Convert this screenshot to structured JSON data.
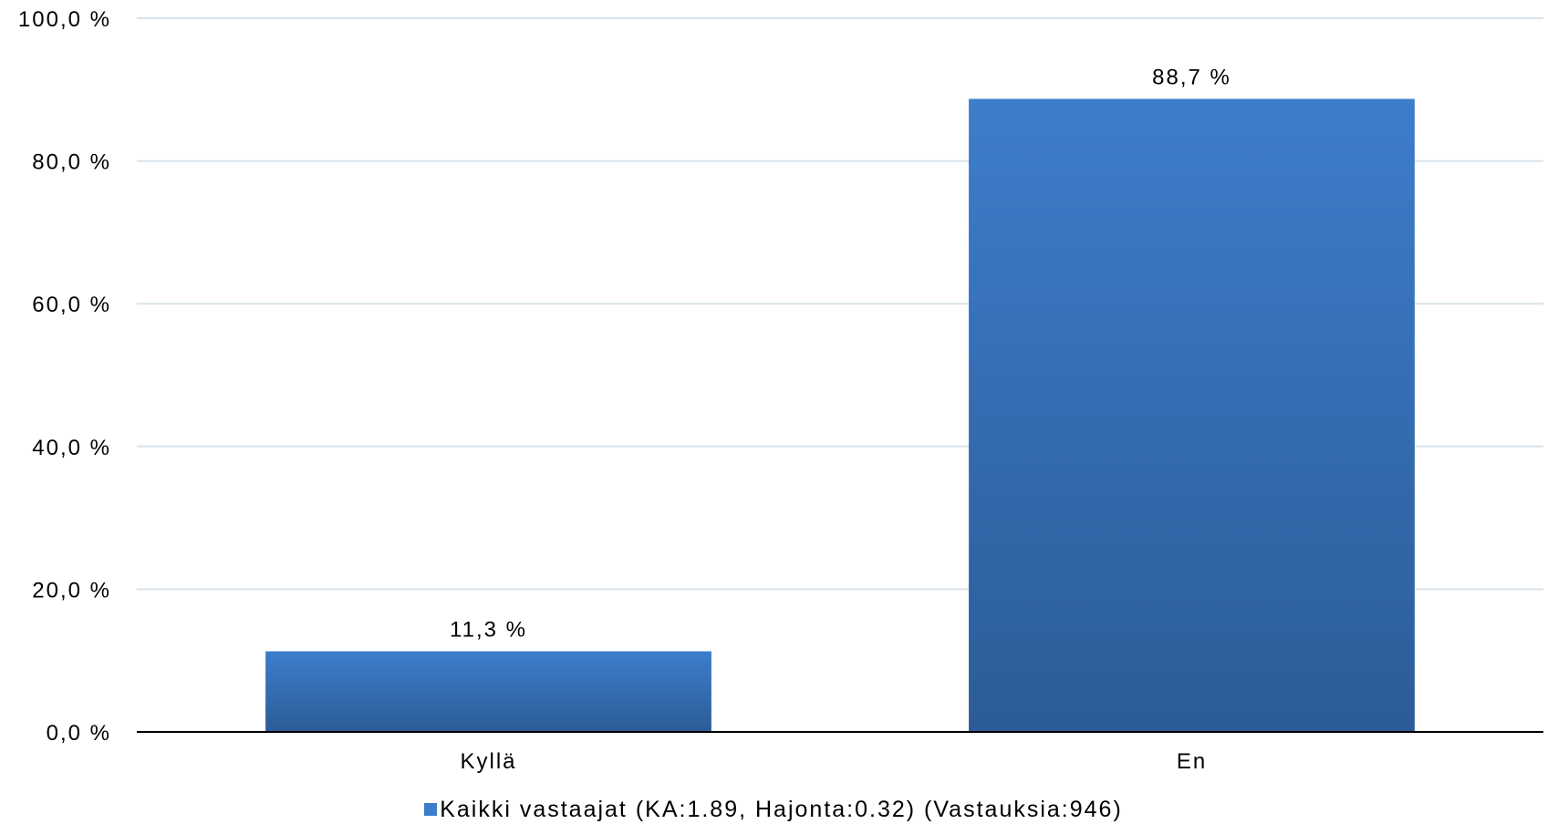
{
  "chart_data": {
    "type": "bar",
    "categories": [
      "Kyllä",
      "En"
    ],
    "series": [
      {
        "name": "Kaikki vastaajat (KA:1.89, Hajonta:0.32) (Vastauksia:946)",
        "values": [
          11.3,
          88.7
        ],
        "data_labels": [
          "11,3 %",
          "88,7 %"
        ]
      }
    ],
    "ylim": [
      0,
      100
    ],
    "y_ticks": [
      0,
      20,
      40,
      60,
      80,
      100
    ],
    "y_tick_labels": [
      "0,0 %",
      "20,0 %",
      "40,0 %",
      "60,0 %",
      "80,0 %",
      "100,0 %"
    ],
    "grid": true,
    "legend_position": "bottom",
    "colors": {
      "bar_top": "#3D7DCB",
      "bar_bottom": "#2C5C97",
      "grid": "#D9E4EC",
      "axis": "#000000"
    }
  },
  "legend": {
    "label": "Kaikki vastaajat (KA:1.89, Hajonta:0.32) (Vastauksia:946)"
  }
}
